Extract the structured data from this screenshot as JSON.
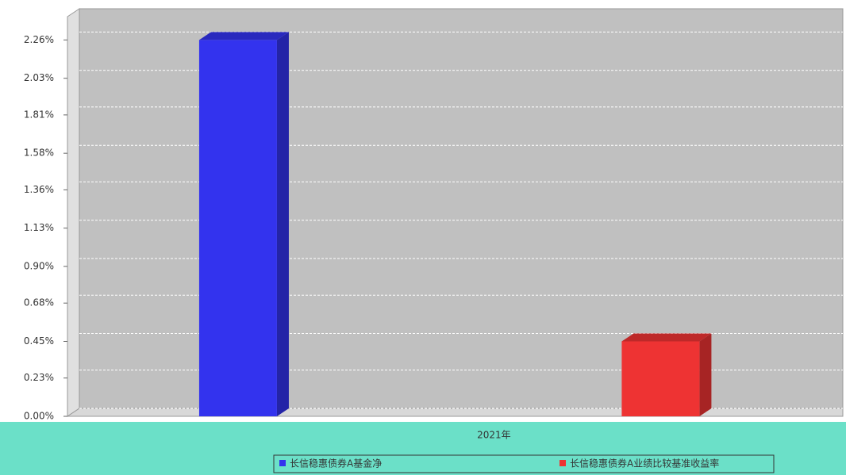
{
  "chart_data": {
    "type": "bar3d",
    "categories": [
      "2021年"
    ],
    "series": [
      {
        "name": "长信稳惠债券A基金净",
        "color": "#3333ee",
        "values": [
          2.26
        ]
      },
      {
        "name": "长信稳惠债券A业绩比较基准收益率",
        "color": "#ee3333",
        "values": [
          0.45
        ]
      }
    ],
    "ylim": [
      0,
      2.4
    ],
    "yticks": [
      {
        "value": 0,
        "label": "0.00%"
      },
      {
        "value": 0.23,
        "label": "0.23%"
      },
      {
        "value": 0.45,
        "label": "0.45%"
      },
      {
        "value": 0.68,
        "label": "0.68%"
      },
      {
        "value": 0.9,
        "label": "0.90%"
      },
      {
        "value": 1.13,
        "label": "1.13%"
      },
      {
        "value": 1.36,
        "label": "1.36%"
      },
      {
        "value": 1.58,
        "label": "1.58%"
      },
      {
        "value": 1.81,
        "label": "1.81%"
      },
      {
        "value": 2.03,
        "label": "2.03%"
      },
      {
        "value": 2.26,
        "label": "2.26%"
      }
    ],
    "grid": true
  }
}
